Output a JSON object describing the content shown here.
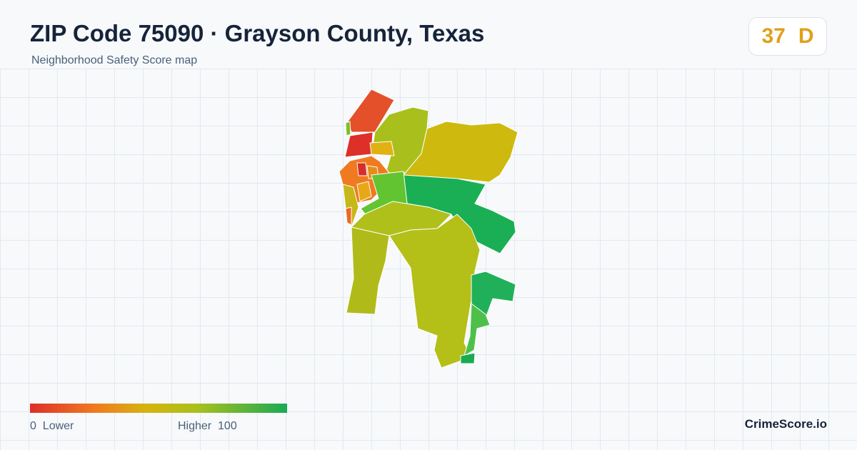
{
  "header": {
    "title": "ZIP Code 75090 · Grayson County, Texas",
    "subtitle": "Neighborhood Safety Score map"
  },
  "score": {
    "value": 37,
    "grade": "D"
  },
  "legend": {
    "min": 0,
    "min_label": "Lower",
    "max_label": "Higher",
    "max": 100
  },
  "brand": "CrimeScore.io"
}
